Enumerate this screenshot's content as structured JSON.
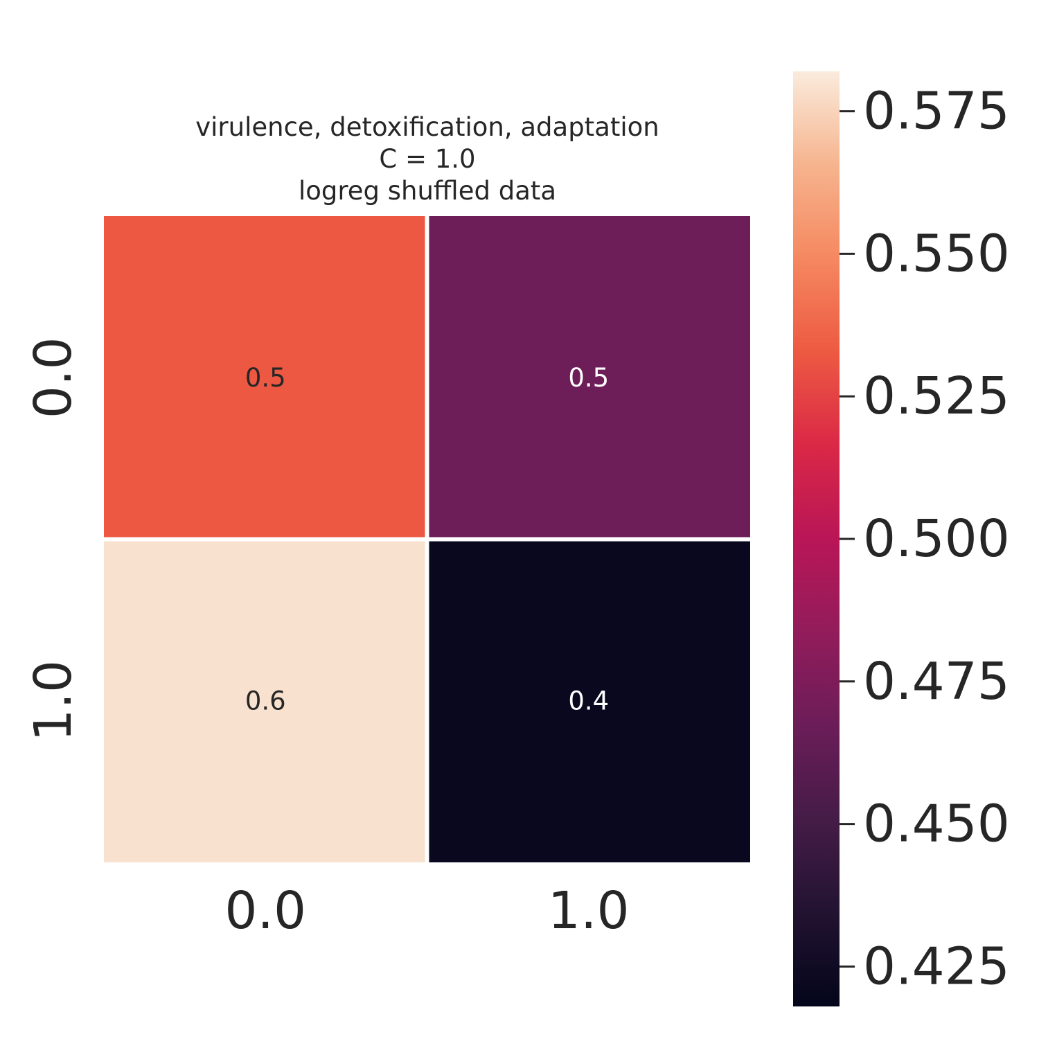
{
  "chart_data": {
    "type": "heatmap",
    "title_lines": [
      "virulence, detoxification, adaptation",
      "C = 1.0",
      "logreg shuffled data"
    ],
    "x_categories": [
      "0.0",
      "1.0"
    ],
    "y_categories": [
      "0.0",
      "1.0"
    ],
    "values": [
      [
        0.532,
        0.468
      ],
      [
        0.579,
        0.421
      ]
    ],
    "annotations": [
      [
        "0.5",
        "0.5"
      ],
      [
        "0.6",
        "0.4"
      ]
    ],
    "colorbar": {
      "range": [
        0.418,
        0.582
      ],
      "ticks": [
        0.425,
        0.45,
        0.475,
        0.5,
        0.525,
        0.55,
        0.575
      ],
      "tick_labels": [
        "0.425",
        "0.450",
        "0.475",
        "0.500",
        "0.525",
        "0.550",
        "0.575"
      ],
      "colormap": "rocket"
    },
    "xlabel": "",
    "ylabel": ""
  }
}
